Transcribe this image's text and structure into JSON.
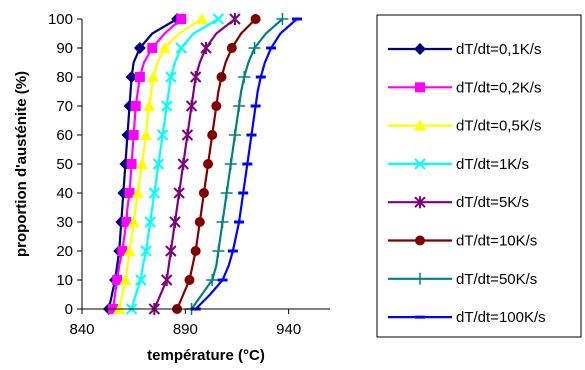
{
  "chart_data": {
    "type": "line",
    "xlabel": "température (°C)",
    "ylabel": "proportion d'austénite (%)",
    "xlim": [
      840,
      960
    ],
    "ylim": [
      0,
      100
    ],
    "xticks": [
      840,
      890,
      940
    ],
    "yticks": [
      0,
      10,
      20,
      30,
      40,
      50,
      60,
      70,
      80,
      90,
      100
    ],
    "grid": false,
    "legend_position": "right",
    "y": [
      0,
      5,
      10,
      15,
      20,
      25,
      30,
      35,
      40,
      45,
      50,
      55,
      60,
      65,
      70,
      75,
      80,
      85,
      90,
      95,
      100
    ],
    "series": [
      {
        "name": "dT/dt=0,1K/s",
        "color": "#000080",
        "marker": "diamond",
        "x": [
          853,
          854.5,
          856,
          857,
          858,
          858.5,
          859,
          859.5,
          860,
          860.5,
          861,
          861.5,
          862,
          862.5,
          863,
          863.5,
          864,
          865,
          868,
          874,
          886
        ]
      },
      {
        "name": "dT/dt=0,2K/s",
        "color": "#ff00ff",
        "marker": "square",
        "x": [
          855,
          856,
          857,
          858,
          859.5,
          860.5,
          861.5,
          862,
          863,
          863.5,
          864,
          864.5,
          865,
          865.5,
          866,
          867,
          868,
          870,
          874,
          880,
          888
        ]
      },
      {
        "name": "dT/dt=0,5K/s",
        "color": "#ffff00",
        "marker": "triangle",
        "x": [
          858,
          859.5,
          861,
          862,
          863,
          864,
          865,
          866,
          867,
          868,
          869,
          870,
          871,
          871.5,
          872.5,
          873.5,
          874.5,
          876.5,
          880,
          887,
          898
        ]
      },
      {
        "name": "dT/dt=1K/s",
        "color": "#00ffff",
        "marker": "x",
        "x": [
          864,
          866,
          868.5,
          869.5,
          871,
          872,
          873,
          874,
          875,
          876,
          877,
          878,
          879,
          880,
          881,
          882,
          883,
          885,
          888,
          894,
          906
        ]
      },
      {
        "name": "dT/dt=5K/s",
        "color": "#800080",
        "marker": "star",
        "x": [
          875,
          878,
          881,
          882,
          883,
          884,
          885,
          886,
          887,
          888,
          889,
          890,
          891,
          892,
          893,
          894,
          895,
          897,
          900,
          905,
          914
        ]
      },
      {
        "name": "dT/dt=10K/s",
        "color": "#800000",
        "marker": "circle",
        "x": [
          886,
          889,
          892,
          893.5,
          895,
          896,
          897,
          898,
          899,
          900,
          901,
          902,
          903,
          904,
          905,
          906,
          907.5,
          909.5,
          912.5,
          917,
          924
        ]
      },
      {
        "name": "dT/dt=50K/s",
        "color": "#008080",
        "marker": "plus",
        "x": [
          893,
          898,
          903,
          905,
          906,
          907,
          908,
          909,
          910,
          911,
          912,
          913,
          914,
          915,
          916,
          917,
          918.5,
          920.5,
          923.5,
          929,
          937
        ]
      },
      {
        "name": "dT/dt=100K/s",
        "color": "#0000ff",
        "marker": "dash",
        "x": [
          895,
          902,
          908,
          911,
          913,
          914.5,
          916,
          917,
          918,
          919,
          920,
          921,
          922,
          923,
          924,
          925,
          926.5,
          928.5,
          931.5,
          936,
          944
        ]
      }
    ]
  }
}
